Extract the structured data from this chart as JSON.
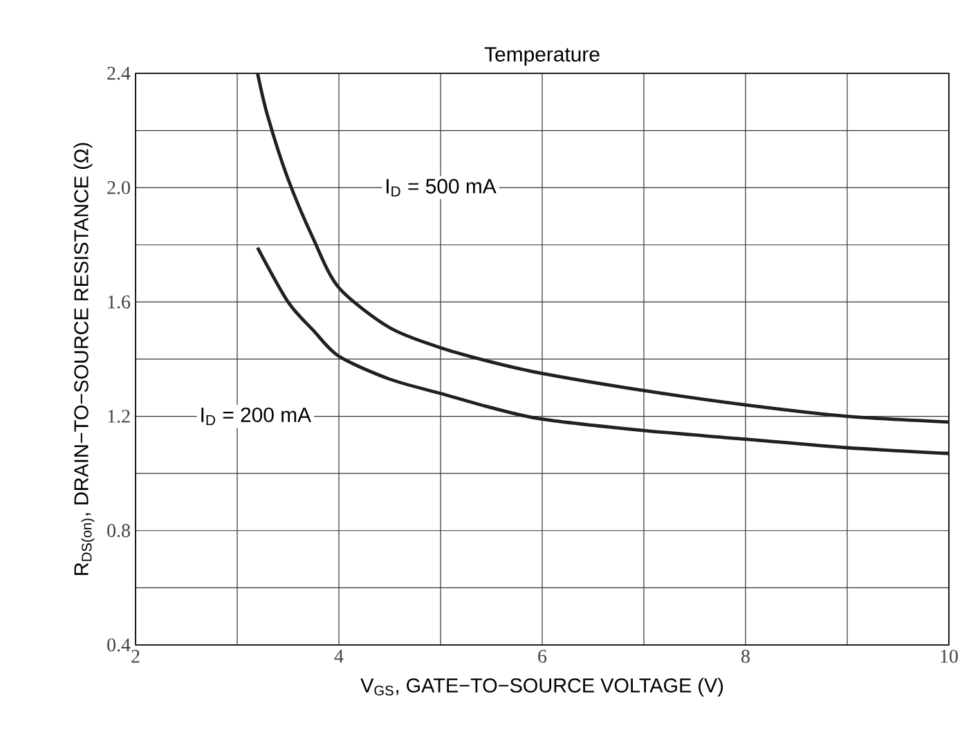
{
  "chart_data": {
    "type": "line",
    "title": "Temperature",
    "xlabel": "V$_{GS}$, GATE−TO−SOURCE VOLTAGE (V)",
    "ylabel": "R$_{DS(on)}$, DRAIN−TO−SOURCE RESISTANCE (Ω)",
    "series": [
      {
        "color": "#231f20",
        "x": [
          3.2,
          3.3,
          3.5,
          3.75,
          4,
          4.5,
          5,
          5.5,
          6,
          7,
          8,
          9,
          10
        ],
        "values": [
          2.4,
          2.25,
          2.03,
          1.82,
          1.65,
          1.51,
          1.44,
          1.39,
          1.35,
          1.29,
          1.24,
          1.2,
          1.18
        ]
      },
      {
        "color": "#231f20",
        "x": [
          3.2,
          3.5,
          3.75,
          4,
          4.5,
          5,
          5.5,
          6,
          7,
          8,
          9,
          10
        ],
        "values": [
          1.79,
          1.6,
          1.5,
          1.41,
          1.33,
          1.28,
          1.23,
          1.19,
          1.15,
          1.12,
          1.09,
          1.07
        ]
      }
    ],
    "annotations": [
      "I$_{D}$ = 500 mA",
      "I$_{D}$ = 200 mA"
    ],
    "xlim": [
      2,
      10
    ],
    "ylim": [
      0.4,
      2.4
    ],
    "xticks": [
      2,
      4,
      6,
      8,
      10
    ],
    "yticks": [
      0.4,
      0.8,
      1.2,
      1.6,
      {
        "value": 2,
        "label": "2.0"
      },
      2.4
    ],
    "grid": true,
    "line_style": "solid",
    "marker": "none"
  }
}
